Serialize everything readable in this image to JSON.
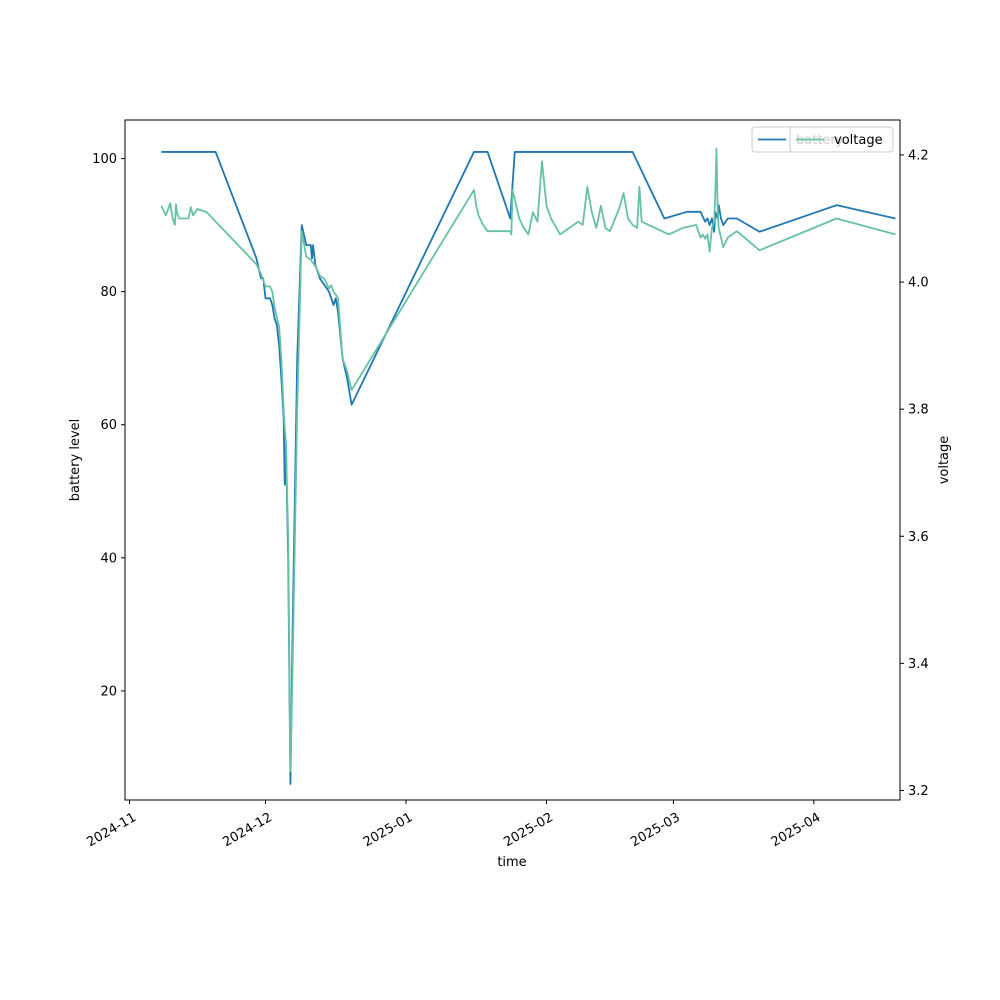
{
  "chart_data": {
    "type": "line",
    "xlabel": "time",
    "ylabel_left": "battery level",
    "ylabel_right": "voltage",
    "x_ticks": [
      "2024-11",
      "2024-12",
      "2025-01",
      "2025-02",
      "2025-03",
      "2025-04"
    ],
    "y_left_ticks": [
      20,
      40,
      60,
      80,
      100
    ],
    "y_right_ticks": [
      3.2,
      3.4,
      3.6,
      3.8,
      4.0,
      4.2
    ],
    "x_range": [
      "2024-10-31",
      "2025-04-20"
    ],
    "y_left_range": [
      3.6,
      105.8
    ],
    "y_right_range": [
      3.185,
      4.255
    ],
    "legend_position": "top-right",
    "grid": false,
    "series": [
      {
        "name": "battery",
        "axis": "left",
        "color": "#1f77b4",
        "points": [
          [
            "2024-11-08",
            101
          ],
          [
            "2024-11-20",
            101
          ],
          [
            "2024-11-29",
            85
          ],
          [
            "2024-11-30",
            82
          ],
          [
            "2024-11-30T12:00",
            82
          ],
          [
            "2024-12-01",
            79
          ],
          [
            "2024-12-02",
            79
          ],
          [
            "2024-12-02T12:00",
            78
          ],
          [
            "2024-12-03",
            76
          ],
          [
            "2024-12-03T12:00",
            75
          ],
          [
            "2024-12-04",
            72
          ],
          [
            "2024-12-04T12:00",
            67
          ],
          [
            "2024-12-05",
            61
          ],
          [
            "2024-12-05T06:00",
            51
          ],
          [
            "2024-12-05T12:00",
            57
          ],
          [
            "2024-12-06",
            40
          ],
          [
            "2024-12-06T12:00",
            6
          ],
          [
            "2024-12-07",
            30
          ],
          [
            "2024-12-08",
            70
          ],
          [
            "2024-12-09",
            90
          ],
          [
            "2024-12-10",
            87
          ],
          [
            "2024-12-11",
            87
          ],
          [
            "2024-12-11T06:00",
            85
          ],
          [
            "2024-12-11T12:00",
            87
          ],
          [
            "2024-12-12",
            84
          ],
          [
            "2024-12-13",
            82
          ],
          [
            "2024-12-14",
            81
          ],
          [
            "2024-12-15",
            80
          ],
          [
            "2024-12-16",
            78
          ],
          [
            "2024-12-16T12:00",
            79
          ],
          [
            "2024-12-17",
            77
          ],
          [
            "2024-12-18",
            70
          ],
          [
            "2024-12-19",
            67
          ],
          [
            "2024-12-20",
            63
          ],
          [
            "2025-01-16",
            101
          ],
          [
            "2025-01-19",
            101
          ],
          [
            "2025-01-24",
            91
          ],
          [
            "2025-01-25",
            101
          ],
          [
            "2025-02-20",
            101
          ],
          [
            "2025-02-27",
            91
          ],
          [
            "2025-03-04",
            92
          ],
          [
            "2025-03-07",
            92
          ],
          [
            "2025-03-08",
            90.5
          ],
          [
            "2025-03-08T12:00",
            91
          ],
          [
            "2025-03-09",
            90
          ],
          [
            "2025-03-09T12:00",
            91
          ],
          [
            "2025-03-10",
            89
          ],
          [
            "2025-03-10T06:00",
            92
          ],
          [
            "2025-03-10T18:00",
            91
          ],
          [
            "2025-03-11",
            93
          ],
          [
            "2025-03-11T12:00",
            91
          ],
          [
            "2025-03-12",
            90
          ],
          [
            "2025-03-13",
            91
          ],
          [
            "2025-03-15",
            91
          ],
          [
            "2025-03-20",
            89
          ],
          [
            "2025-04-06",
            93
          ],
          [
            "2025-04-19",
            91
          ]
        ]
      },
      {
        "name": "voltage",
        "axis": "right",
        "color": "#66c2a5",
        "points": [
          [
            "2024-11-08",
            4.12
          ],
          [
            "2024-11-09",
            4.105
          ],
          [
            "2024-11-10",
            4.124
          ],
          [
            "2024-11-10T12:00",
            4.1
          ],
          [
            "2024-11-11",
            4.09
          ],
          [
            "2024-11-11T06:00",
            4.122
          ],
          [
            "2024-11-11T12:00",
            4.108
          ],
          [
            "2024-11-12",
            4.1
          ],
          [
            "2024-11-14",
            4.1
          ],
          [
            "2024-11-14T12:00",
            4.118
          ],
          [
            "2024-11-15",
            4.105
          ],
          [
            "2024-11-16",
            4.115
          ],
          [
            "2024-11-18",
            4.11
          ],
          [
            "2024-11-29",
            4.028
          ],
          [
            "2024-11-30",
            4.013
          ],
          [
            "2024-12-01",
            3.993
          ],
          [
            "2024-12-02",
            3.993
          ],
          [
            "2024-12-02T12:00",
            3.985
          ],
          [
            "2024-12-03",
            3.96
          ],
          [
            "2024-12-04",
            3.93
          ],
          [
            "2024-12-04T12:00",
            3.88
          ],
          [
            "2024-12-05",
            3.8
          ],
          [
            "2024-12-05T06:00",
            3.77
          ],
          [
            "2024-12-05T12:00",
            3.75
          ],
          [
            "2024-12-06",
            3.6
          ],
          [
            "2024-12-06T12:00",
            3.23
          ],
          [
            "2024-12-07",
            3.4
          ],
          [
            "2024-12-08",
            3.8
          ],
          [
            "2024-12-09",
            4.08
          ],
          [
            "2024-12-10",
            4.04
          ],
          [
            "2024-12-11",
            4.035
          ],
          [
            "2024-12-12",
            4.025
          ],
          [
            "2024-12-13",
            4.01
          ],
          [
            "2024-12-14",
            4.005
          ],
          [
            "2024-12-15",
            3.99
          ],
          [
            "2024-12-15T12:00",
            3.995
          ],
          [
            "2024-12-16",
            3.985
          ],
          [
            "2024-12-17",
            3.975
          ],
          [
            "2024-12-18",
            3.88
          ],
          [
            "2024-12-19",
            3.86
          ],
          [
            "2024-12-20",
            3.83
          ],
          [
            "2025-01-16",
            4.145
          ],
          [
            "2025-01-16T12:00",
            4.12
          ],
          [
            "2025-01-17",
            4.105
          ],
          [
            "2025-01-18",
            4.09
          ],
          [
            "2025-01-19",
            4.08
          ],
          [
            "2025-01-24",
            4.08
          ],
          [
            "2025-01-24T06:00",
            4.075
          ],
          [
            "2025-01-24T12:00",
            4.145
          ],
          [
            "2025-01-25",
            4.13
          ],
          [
            "2025-01-26",
            4.1
          ],
          [
            "2025-01-27",
            4.085
          ],
          [
            "2025-01-28",
            4.075
          ],
          [
            "2025-01-29",
            4.11
          ],
          [
            "2025-01-30",
            4.095
          ],
          [
            "2025-01-31",
            4.19
          ],
          [
            "2025-02-01",
            4.12
          ],
          [
            "2025-02-02",
            4.1
          ],
          [
            "2025-02-04",
            4.075
          ],
          [
            "2025-02-08",
            4.095
          ],
          [
            "2025-02-09",
            4.09
          ],
          [
            "2025-02-10",
            4.15
          ],
          [
            "2025-02-11",
            4.11
          ],
          [
            "2025-02-12",
            4.085
          ],
          [
            "2025-02-13",
            4.12
          ],
          [
            "2025-02-14",
            4.085
          ],
          [
            "2025-02-15",
            4.08
          ],
          [
            "2025-02-17",
            4.115
          ],
          [
            "2025-02-18",
            4.14
          ],
          [
            "2025-02-19",
            4.1
          ],
          [
            "2025-02-20",
            4.09
          ],
          [
            "2025-02-21",
            4.085
          ],
          [
            "2025-02-21T12:00",
            4.15
          ],
          [
            "2025-02-22",
            4.095
          ],
          [
            "2025-02-28",
            4.075
          ],
          [
            "2025-03-03",
            4.085
          ],
          [
            "2025-03-06",
            4.09
          ],
          [
            "2025-03-07",
            4.07
          ],
          [
            "2025-03-07T12:00",
            4.075
          ],
          [
            "2025-03-08",
            4.068
          ],
          [
            "2025-03-08T12:00",
            4.075
          ],
          [
            "2025-03-09",
            4.048
          ],
          [
            "2025-03-09T12:00",
            4.085
          ],
          [
            "2025-03-10",
            4.095
          ],
          [
            "2025-03-10T06:00",
            4.14
          ],
          [
            "2025-03-10T12:00",
            4.21
          ],
          [
            "2025-03-10T18:00",
            4.12
          ],
          [
            "2025-03-11",
            4.085
          ],
          [
            "2025-03-12",
            4.055
          ],
          [
            "2025-03-13",
            4.07
          ],
          [
            "2025-03-15",
            4.08
          ],
          [
            "2025-03-20",
            4.05
          ],
          [
            "2025-04-06",
            4.1
          ],
          [
            "2025-04-19",
            4.075
          ]
        ]
      }
    ]
  }
}
